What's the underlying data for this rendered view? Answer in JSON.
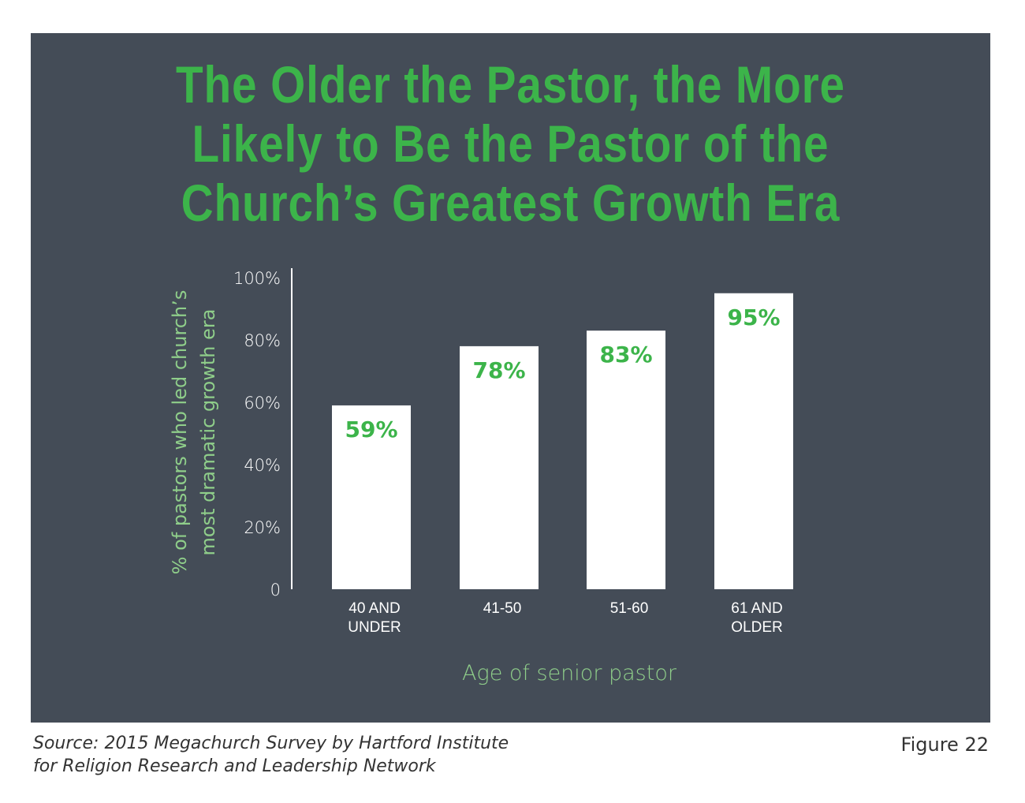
{
  "chart_data": {
    "type": "bar",
    "title": "The Older the Pastor, the More Likely to Be the Pastor of the Church's Greatest Growth Era",
    "title_lines": [
      "The Older the Pastor, the More",
      "Likely to Be the Pastor of the",
      "Church’s Greatest Growth Era"
    ],
    "categories": [
      [
        "40 AND",
        "UNDER"
      ],
      [
        "41-50"
      ],
      [
        "51-60"
      ],
      [
        "61 AND",
        "OLDER"
      ]
    ],
    "values": [
      59,
      78,
      83,
      95
    ],
    "data_labels": [
      "59%",
      "78%",
      "83%",
      "95%"
    ],
    "ylim": [
      0,
      100
    ],
    "yticks": [
      0,
      20,
      40,
      60,
      80,
      100
    ],
    "ytick_labels": [
      "0",
      "20%",
      "40%",
      "60%",
      "80%",
      "100%"
    ],
    "ylabel_lines": [
      "% of pastors who led church’s",
      "most dramatic growth era"
    ],
    "xlabel": "Age of senior pastor",
    "grid": false,
    "colors": {
      "background": "#444c57",
      "accent": "#3cb44a",
      "bar": "#ffffff",
      "axis_text": "#ffffff",
      "axis_title": "#8fce8a"
    }
  },
  "footer": {
    "source_lines": [
      "Source: 2015 Megachurch Survey by Hartford Institute",
      "for Religion Research and Leadership Network"
    ],
    "figure_label": "Figure 22"
  }
}
